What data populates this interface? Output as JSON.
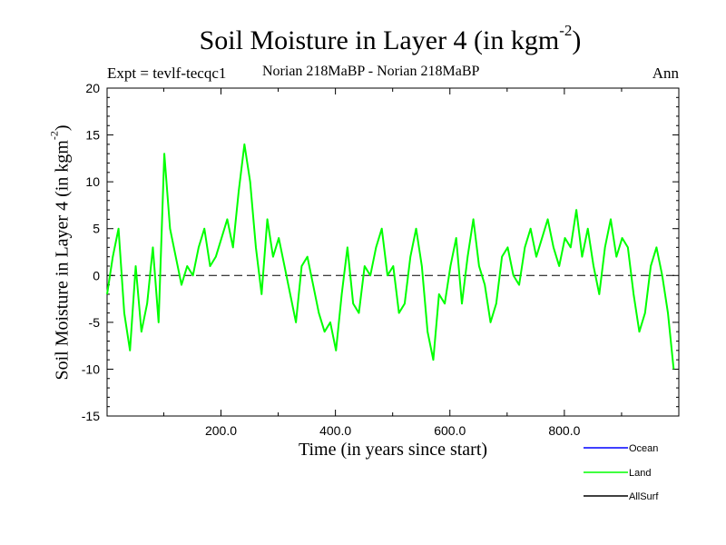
{
  "header": {
    "title_main": "Soil Moisture in Layer 4 (in kgm",
    "title_exp": "-2",
    "title_close": ")",
    "expt": "Expt = tevlf-tecqc1",
    "periods": "Norian 218MaBP - Norian 218MaBP",
    "season": "Ann"
  },
  "chart_data": {
    "type": "line",
    "title": "Soil Moisture in Layer 4 (in kgm-2)",
    "xlabel": "Time (in years since start)",
    "ylabel": "Soil Moisture in Layer 4 (in kgm-2)",
    "ylabel_main": "Soil Moisture in Layer 4 (in kgm",
    "ylabel_exp": "-2",
    "ylabel_close": ")",
    "xlim": [
      1,
      1000
    ],
    "ylim": [
      -15,
      20
    ],
    "xticks": [
      200,
      400,
      600,
      800
    ],
    "xtick_labels": [
      "200.0",
      "400.0",
      "600.0",
      "800.0"
    ],
    "yticks": [
      -15,
      -10,
      -5,
      0,
      5,
      10,
      15,
      20
    ],
    "ytick_labels": [
      "-15",
      "-10",
      "-5",
      "0",
      "5",
      "10",
      "15",
      "20"
    ],
    "zero_line": true,
    "legend": [
      "Ocean",
      "Land",
      "AllSurf"
    ],
    "series": [
      {
        "name": "Ocean",
        "color": "#0000ff",
        "values": []
      },
      {
        "name": "Land",
        "color": "#00ff00",
        "x_step": 10,
        "x_start": 1,
        "values": [
          -2,
          2,
          5,
          -4,
          -8,
          1,
          -6,
          -3,
          3,
          -5,
          13,
          5,
          2,
          -1,
          1,
          0,
          3,
          5,
          1,
          2,
          4,
          6,
          3,
          9,
          14,
          10,
          3,
          -2,
          6,
          2,
          4,
          1,
          -2,
          -5,
          1,
          2,
          -1,
          -4,
          -6,
          -5,
          -8,
          -2,
          3,
          -3,
          -4,
          1,
          0,
          3,
          5,
          0,
          1,
          -4,
          -3,
          2,
          5,
          1,
          -6,
          -9,
          -2,
          -3,
          1,
          4,
          -3,
          2,
          6,
          1,
          -1,
          -5,
          -3,
          2,
          3,
          0,
          -1,
          3,
          5,
          2,
          4,
          6,
          3,
          1,
          4,
          3,
          7,
          2,
          5,
          1,
          -2,
          3,
          6,
          2,
          4,
          3,
          -2,
          -6,
          -4,
          1,
          3,
          0,
          -4,
          -10
        ]
      },
      {
        "name": "AllSurf",
        "color": "#000000",
        "values": []
      }
    ]
  }
}
